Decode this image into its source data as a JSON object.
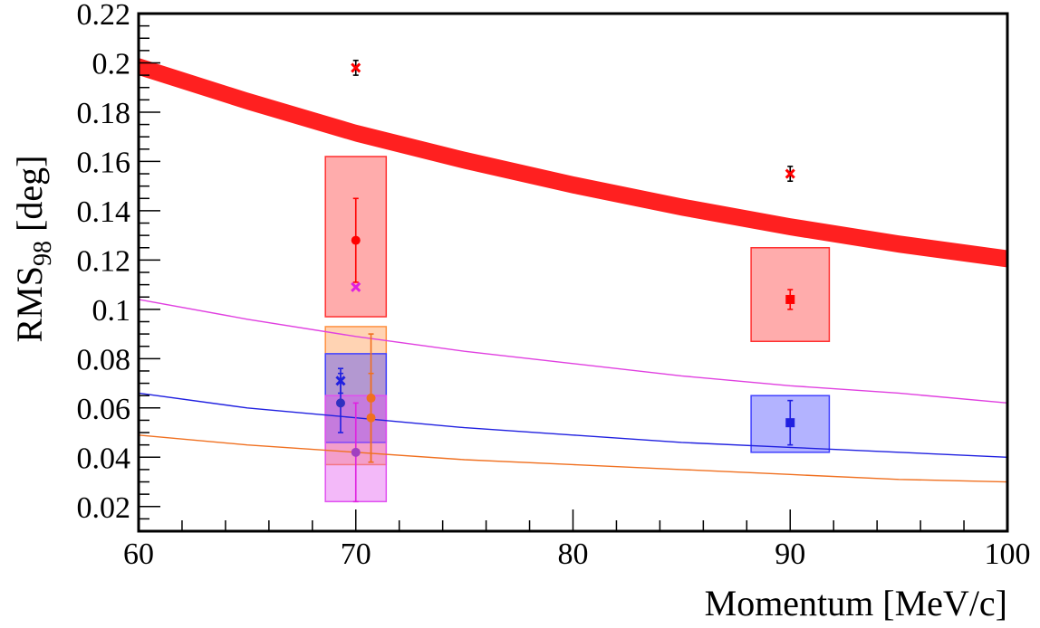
{
  "chart_data": {
    "type": "scatter",
    "title": "",
    "xlabel": "Momentum [MeV/c]",
    "ylabel": {
      "main": "RMS",
      "sub": "98",
      "unit": " [deg]"
    },
    "xlim": [
      60,
      100
    ],
    "ylim": [
      0.01,
      0.22
    ],
    "x_ticks": [
      60,
      70,
      80,
      90,
      100
    ],
    "x_tick_labels": [
      "60",
      "70",
      "80",
      "90",
      "100"
    ],
    "y_ticks": [
      0.02,
      0.04,
      0.06,
      0.08,
      0.1,
      0.12,
      0.14,
      0.16,
      0.18,
      0.2,
      0.22
    ],
    "y_tick_labels": [
      "0.02",
      "0.04",
      "0.06",
      "0.08",
      "0.1",
      "0.12",
      "0.14",
      "0.16",
      "0.18",
      "0.2",
      "0.22"
    ],
    "grid": false,
    "legend": "none",
    "bands": [
      {
        "color": "#ff2020",
        "x": [
          60,
          65,
          70,
          75,
          80,
          85,
          90,
          95,
          100
        ],
        "y_low": [
          0.195,
          0.181,
          0.168,
          0.157,
          0.147,
          0.138,
          0.13,
          0.123,
          0.117
        ],
        "y_high": [
          0.202,
          0.188,
          0.175,
          0.164,
          0.154,
          0.145,
          0.137,
          0.13,
          0.124
        ]
      }
    ],
    "curves": [
      {
        "color": "#e040e0",
        "x": [
          60,
          65,
          70,
          75,
          80,
          85,
          90,
          95,
          100
        ],
        "y": [
          0.104,
          0.096,
          0.089,
          0.083,
          0.078,
          0.073,
          0.069,
          0.066,
          0.062
        ]
      },
      {
        "color": "#2020e0",
        "x": [
          60,
          65,
          70,
          75,
          80,
          85,
          90,
          95,
          100
        ],
        "y": [
          0.066,
          0.06,
          0.056,
          0.052,
          0.049,
          0.046,
          0.044,
          0.042,
          0.04
        ]
      },
      {
        "color": "#f07020",
        "x": [
          60,
          65,
          70,
          75,
          80,
          85,
          90,
          95,
          100
        ],
        "y": [
          0.049,
          0.045,
          0.042,
          0.039,
          0.037,
          0.035,
          0.033,
          0.031,
          0.03
        ]
      }
    ],
    "boxes": [
      {
        "color": "#ff3030",
        "x0": 68.6,
        "x1": 71.4,
        "y0": 0.097,
        "y1": 0.162
      },
      {
        "color": "#ff9040",
        "x0": 68.6,
        "x1": 71.4,
        "y0": 0.037,
        "y1": 0.093
      },
      {
        "color": "#4040ff",
        "x0": 68.6,
        "x1": 71.4,
        "y0": 0.046,
        "y1": 0.082
      },
      {
        "color": "#e050f0",
        "x0": 68.6,
        "x1": 71.4,
        "y0": 0.022,
        "y1": 0.065
      },
      {
        "color": "#ff3030",
        "x0": 88.2,
        "x1": 91.8,
        "y0": 0.087,
        "y1": 0.125
      },
      {
        "color": "#4040ff",
        "x0": 88.2,
        "x1": 91.8,
        "y0": 0.042,
        "y1": 0.065
      }
    ],
    "points": [
      {
        "x": 70.0,
        "y": 0.198,
        "err": 0.003,
        "marker": "x",
        "color": "#ff0000",
        "bar_color": "#000000"
      },
      {
        "x": 90.0,
        "y": 0.155,
        "err": 0.003,
        "marker": "x",
        "color": "#ff0000",
        "bar_color": "#000000"
      },
      {
        "x": 70.0,
        "y": 0.128,
        "err": 0.017,
        "marker": "circle",
        "color": "#ff0000",
        "bar_color": "#ff0000"
      },
      {
        "x": 70.0,
        "y": 0.109,
        "err": 0,
        "marker": "x",
        "color": "#e020e0",
        "bar_color": "#e020e0"
      },
      {
        "x": 90.0,
        "y": 0.104,
        "err": 0.004,
        "marker": "square",
        "color": "#ff0000",
        "bar_color": "#ff0000"
      },
      {
        "x": 69.3,
        "y": 0.071,
        "err": 0.005,
        "marker": "x",
        "color": "#2020e0",
        "bar_color": "#2020e0"
      },
      {
        "x": 69.3,
        "y": 0.062,
        "err": 0.012,
        "marker": "circle",
        "color": "#3030c0",
        "bar_color": "#2020e0"
      },
      {
        "x": 70.0,
        "y": 0.042,
        "err": 0.02,
        "marker": "circle",
        "color": "#a040c0",
        "bar_color": "#e020e0"
      },
      {
        "x": 70.7,
        "y": 0.064,
        "err": 0.026,
        "marker": "circle",
        "color": "#f07020",
        "bar_color": "#f07020"
      },
      {
        "x": 70.7,
        "y": 0.056,
        "err": 0.018,
        "marker": "circle",
        "color": "#f07020",
        "bar_color": "#f07020"
      },
      {
        "x": 90.0,
        "y": 0.054,
        "err": 0.009,
        "marker": "square",
        "color": "#2020e0",
        "bar_color": "#2020e0"
      }
    ]
  }
}
